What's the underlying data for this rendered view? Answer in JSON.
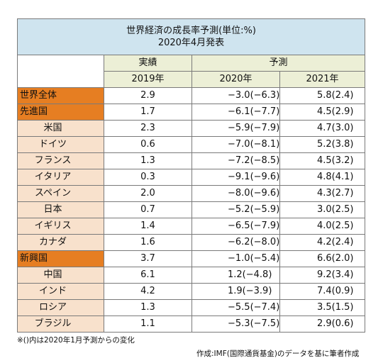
{
  "title": {
    "line1": "世界経済の成長率予測(単位:%)",
    "line2": "2020年4月発表"
  },
  "headers": {
    "actual": "実績",
    "forecast": "予測",
    "y2019": "2019年",
    "y2020": "2020年",
    "y2021": "2021年"
  },
  "rows": [
    {
      "name": "世界全体",
      "type": "main",
      "v2019": "2.9",
      "v2020": "−3.0(−6.3)",
      "v2021": "5.8(2.4)"
    },
    {
      "name": "先進国",
      "type": "main",
      "v2019": "1.7",
      "v2020": "−6.1(−7.7)",
      "v2021": "4.5(2.9)"
    },
    {
      "name": "米国",
      "type": "sub",
      "v2019": "2.3",
      "v2020": "−5.9(−7.9)",
      "v2021": "4.7(3.0)"
    },
    {
      "name": "ドイツ",
      "type": "sub",
      "v2019": "0.6",
      "v2020": "−7.0(−8.1)",
      "v2021": "5.2(3.8)"
    },
    {
      "name": "フランス",
      "type": "sub",
      "v2019": "1.3",
      "v2020": "−7.2(−8.5)",
      "v2021": "4.5(3.2)"
    },
    {
      "name": "イタリア",
      "type": "sub",
      "v2019": "0.3",
      "v2020": "−9.1(−9.6)",
      "v2021": "4.8(4.1)"
    },
    {
      "name": "スペイン",
      "type": "sub",
      "v2019": "2.0",
      "v2020": "−8.0(−9.6)",
      "v2021": "4.3(2.7)"
    },
    {
      "name": "日本",
      "type": "sub",
      "v2019": "0.7",
      "v2020": "−5.2(−5.9)",
      "v2021": "3.0(2.5)"
    },
    {
      "name": "イギリス",
      "type": "sub",
      "v2019": "1.4",
      "v2020": "−6.5(−7.9)",
      "v2021": "4.0(2.5)"
    },
    {
      "name": "カナダ",
      "type": "sub",
      "v2019": "1.6",
      "v2020": "−6.2(−8.0)",
      "v2021": "4.2(2.4)"
    },
    {
      "name": "新興国",
      "type": "main",
      "v2019": "3.7",
      "v2020": "−1.0(−5.4)",
      "v2021": "6.6(2.0)"
    },
    {
      "name": "中国",
      "type": "sub",
      "v2019": "6.1",
      "v2020": "1.2(−4.8)",
      "v2021": "9.2(3.4)"
    },
    {
      "name": "インド",
      "type": "sub",
      "v2019": "4.2",
      "v2020": "1.9(−3.9)",
      "v2021": "7.4(0.9)"
    },
    {
      "name": "ロシア",
      "type": "sub",
      "v2019": "1.3",
      "v2020": "−5.5(−7.4)",
      "v2021": "3.5(1.5)"
    },
    {
      "name": "ブラジル",
      "type": "sub",
      "v2019": "1.1",
      "v2020": "−5.3(−7.5)",
      "v2021": "2.9(0.6)"
    }
  ],
  "footnote": "※()内は2020年1月予測からの変化",
  "source": "作成:IMF(国際通貨基金)のデータを基に筆者作成",
  "colors": {
    "title_bg": "#cfe4ef",
    "header_bg": "#ecefd6",
    "main_cat_bg": "#e67e22",
    "sub_cat_bg": "#f8e1cc"
  }
}
